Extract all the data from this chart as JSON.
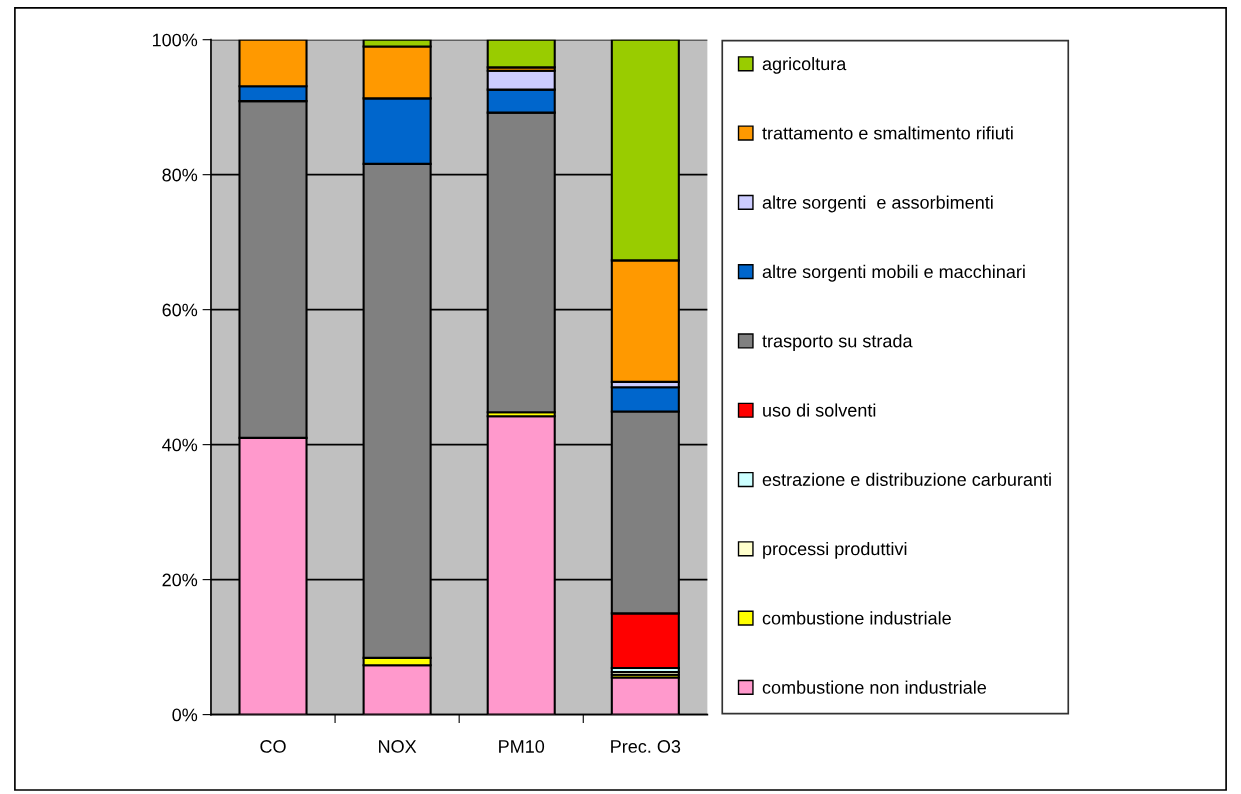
{
  "chart_data": {
    "type": "bar",
    "stacked": true,
    "categories": [
      "CO",
      "NOX",
      "PM10",
      "Prec. O3"
    ],
    "series": [
      {
        "name": "combustione non industriale",
        "color": "#ff99cc",
        "values": [
          41.0,
          7.3,
          44.2,
          5.5
        ]
      },
      {
        "name": "combustione industriale",
        "color": "#ffff00",
        "values": [
          null,
          1.1,
          0.6,
          0.4
        ]
      },
      {
        "name": "processi produttivi",
        "color": "#ffffcc",
        "values": [
          0,
          0,
          0,
          0.4
        ]
      },
      {
        "name": "estrazione e distribuzione carburanti",
        "color": "#ccffff",
        "values": [
          0,
          0,
          0,
          0.6
        ]
      },
      {
        "name": "uso di solventi",
        "color": "#ff0000",
        "values": [
          0,
          0,
          0,
          8.1
        ]
      },
      {
        "name": "trasporto su strada",
        "color": "#808080",
        "values": [
          49.9,
          73.2,
          44.4,
          29.9
        ]
      },
      {
        "name": "altre sorgenti mobili e macchinari",
        "color": "#0066cc",
        "values": [
          2.2,
          9.7,
          3.4,
          3.6
        ]
      },
      {
        "name": "altre sorgenti  e assorbimenti",
        "color": "#ccccff",
        "values": [
          null,
          0,
          2.8,
          0.8
        ]
      },
      {
        "name": "trattamento e smaltimento rifiuti",
        "color": "#ff9900",
        "values": [
          6.9,
          7.7,
          0.5,
          18.0
        ]
      },
      {
        "name": "agricoltura",
        "color": "#99cc00",
        "values": [
          0,
          1.0,
          4.1,
          32.7
        ]
      }
    ],
    "ylim": [
      0,
      100
    ],
    "yticks": [
      {
        "value": 0,
        "label": "0%"
      },
      {
        "value": 20,
        "label": "20%"
      },
      {
        "value": 40,
        "label": "40%"
      },
      {
        "value": 60,
        "label": "60%"
      },
      {
        "value": 80,
        "label": "80%"
      },
      {
        "value": 100,
        "label": "100%"
      }
    ],
    "grid": "y",
    "legend": "right"
  }
}
